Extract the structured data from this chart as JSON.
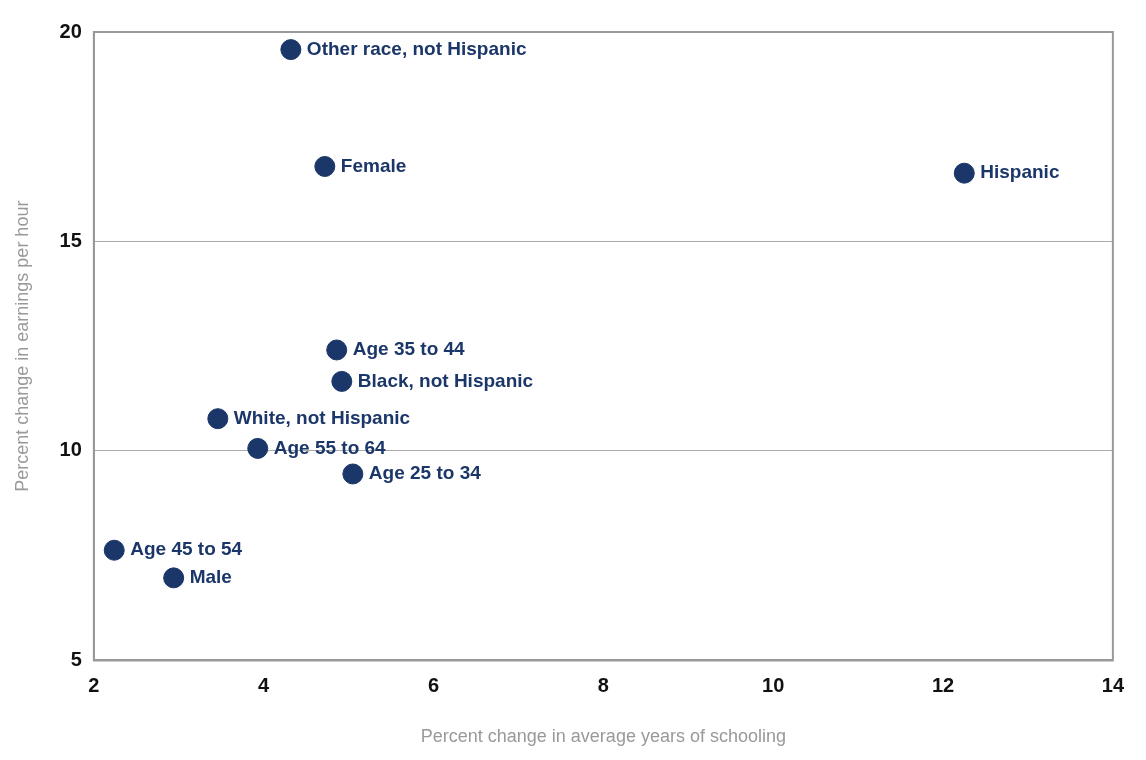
{
  "chart_data": {
    "type": "scatter",
    "xlabel": "Percent change in average years of schooling",
    "ylabel": "Percent change in earnings per hour",
    "x": [
      4.32,
      4.72,
      12.25,
      4.86,
      4.92,
      3.46,
      3.93,
      5.05,
      2.24,
      2.94
    ],
    "series": [
      {
        "color": "#1b3668",
        "values": [
          19.58,
          16.79,
          16.63,
          12.41,
          11.66,
          10.77,
          10.06,
          9.45,
          7.63,
          6.97
        ]
      }
    ],
    "annotations": [
      {
        "text": "Other race, not Hispanic",
        "x": 4.32,
        "y": 19.58
      },
      {
        "text": "Female",
        "x": 4.72,
        "y": 16.79
      },
      {
        "text": "Hispanic",
        "x": 12.25,
        "y": 16.63
      },
      {
        "text": "Age 35 to 44",
        "x": 4.86,
        "y": 12.41
      },
      {
        "text": "Black, not Hispanic",
        "x": 4.92,
        "y": 11.66
      },
      {
        "text": "White, not Hispanic",
        "x": 3.46,
        "y": 10.77
      },
      {
        "text": "Age 55 to 64",
        "x": 3.93,
        "y": 10.06
      },
      {
        "text": "Age 25 to 34",
        "x": 5.05,
        "y": 9.45
      },
      {
        "text": "Age 45 to 54",
        "x": 2.24,
        "y": 7.63
      },
      {
        "text": "Male",
        "x": 2.94,
        "y": 6.97
      }
    ],
    "xlim": [
      2,
      14
    ],
    "xticks": [
      2,
      4,
      6,
      8,
      10,
      12,
      14
    ],
    "ylim": [
      5,
      20
    ],
    "yticks": [
      5,
      10,
      15,
      20
    ],
    "grid": "y",
    "marker": "circle",
    "legend": false
  }
}
